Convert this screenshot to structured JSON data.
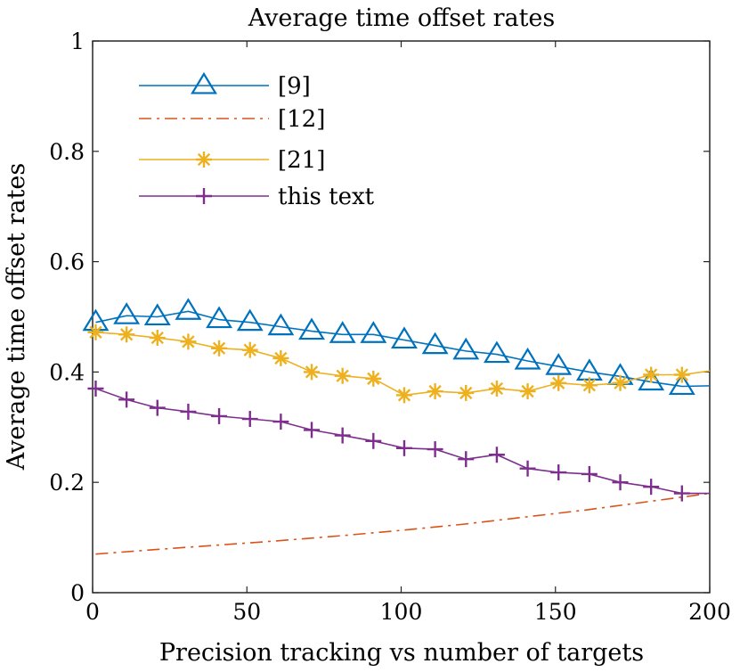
{
  "chart_data": {
    "type": "line",
    "title": "Average time offset rates",
    "xlabel": "Precision tracking vs number of targets",
    "ylabel": "Average time offset rates",
    "xlim": [
      0,
      200
    ],
    "ylim": [
      0,
      1
    ],
    "xticks": [
      0,
      50,
      100,
      150,
      200
    ],
    "xtick_labels": [
      "0",
      "50",
      "100",
      "150",
      "200"
    ],
    "yticks": [
      0,
      0.2,
      0.4,
      0.6,
      0.8,
      1
    ],
    "ytick_labels": [
      "0",
      "0.2",
      "0.4",
      "0.6",
      "0.8",
      "1"
    ],
    "grid": false,
    "legend_position": "top-left",
    "series": [
      {
        "name": "[9]",
        "color": "#0072BD",
        "line_style": "solid",
        "marker": "triangle",
        "x": [
          1,
          11,
          21,
          31,
          41,
          51,
          61,
          71,
          81,
          91,
          101,
          111,
          121,
          131,
          141,
          151,
          161,
          171,
          181,
          191,
          200
        ],
        "y": [
          0.49,
          0.502,
          0.5,
          0.51,
          0.495,
          0.49,
          0.482,
          0.474,
          0.468,
          0.468,
          0.458,
          0.448,
          0.438,
          0.432,
          0.42,
          0.41,
          0.4,
          0.392,
          0.382,
          0.374,
          0.375
        ]
      },
      {
        "name": "[12]",
        "color": "#D95319",
        "line_style": "dashdot",
        "marker": "none",
        "x": [
          1,
          20,
          40,
          60,
          80,
          100,
          120,
          140,
          160,
          180,
          200
        ],
        "y": [
          0.07,
          0.078,
          0.086,
          0.094,
          0.103,
          0.113,
          0.124,
          0.137,
          0.15,
          0.165,
          0.18
        ]
      },
      {
        "name": "[21]",
        "color": "#EDB120",
        "line_style": "solid",
        "marker": "asterisk",
        "x": [
          1,
          11,
          21,
          31,
          41,
          51,
          61,
          71,
          81,
          91,
          101,
          111,
          121,
          131,
          141,
          151,
          161,
          171,
          181,
          191,
          200
        ],
        "y": [
          0.472,
          0.468,
          0.462,
          0.455,
          0.443,
          0.44,
          0.425,
          0.4,
          0.393,
          0.388,
          0.358,
          0.365,
          0.362,
          0.37,
          0.365,
          0.38,
          0.376,
          0.38,
          0.395,
          0.395,
          0.402
        ]
      },
      {
        "name": "this text",
        "color": "#7E2F8E",
        "line_style": "solid",
        "marker": "plus",
        "x": [
          1,
          11,
          21,
          31,
          41,
          51,
          61,
          71,
          81,
          91,
          101,
          111,
          121,
          131,
          141,
          151,
          161,
          171,
          181,
          191,
          200
        ],
        "y": [
          0.37,
          0.35,
          0.335,
          0.328,
          0.32,
          0.315,
          0.31,
          0.295,
          0.285,
          0.275,
          0.262,
          0.26,
          0.242,
          0.25,
          0.225,
          0.218,
          0.215,
          0.2,
          0.192,
          0.18,
          0.18
        ]
      }
    ]
  }
}
